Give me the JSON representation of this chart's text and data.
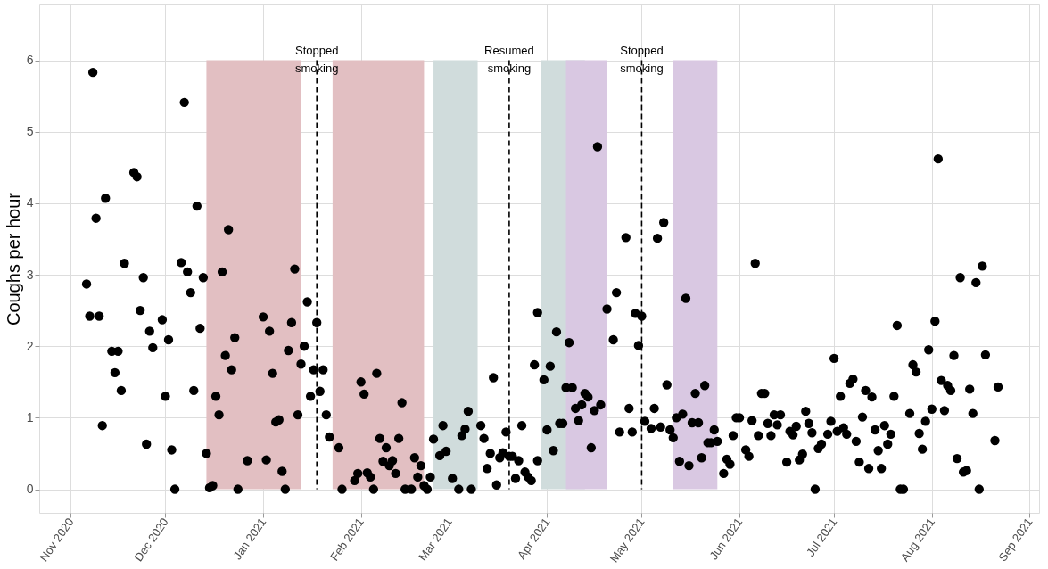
{
  "chart_data": {
    "type": "scatter",
    "ylabel": "Coughs per hour",
    "xlim": [
      "2020-10-22",
      "2021-09-04"
    ],
    "ylim": [
      -0.33,
      6.78
    ],
    "yticks": [
      0,
      1,
      2,
      3,
      4,
      5,
      6
    ],
    "xticks": [
      {
        "value": "2020-11-01",
        "label": "Nov 2020"
      },
      {
        "value": "2020-12-01",
        "label": "Dec 2020"
      },
      {
        "value": "2021-01-01",
        "label": "Jan 2021"
      },
      {
        "value": "2021-02-01",
        "label": "Feb 2021"
      },
      {
        "value": "2021-03-01",
        "label": "Mar 2021"
      },
      {
        "value": "2021-04-01",
        "label": "Apr 2021"
      },
      {
        "value": "2021-05-01",
        "label": "May 2021"
      },
      {
        "value": "2021-06-01",
        "label": "Jun 2021"
      },
      {
        "value": "2021-07-01",
        "label": "Jul 2021"
      },
      {
        "value": "2021-08-01",
        "label": "Aug 2021"
      },
      {
        "value": "2021-09-01",
        "label": "Sep 2021"
      }
    ],
    "grid": true,
    "marker": "circle",
    "bands": [
      {
        "axis": "x",
        "from": "2020-12-14",
        "to": "2021-01-13",
        "color": "#e2bfc2"
      },
      {
        "axis": "x",
        "from": "2021-01-23",
        "to": "2021-02-21",
        "color": "#e2bfc2"
      },
      {
        "axis": "x",
        "from": "2021-02-24",
        "to": "2021-03-10",
        "color": "#d0dcdc"
      },
      {
        "axis": "x",
        "from": "2021-03-30",
        "to": "2021-04-13",
        "color": "#d0dcdc"
      },
      {
        "axis": "x",
        "from": "2021-04-07",
        "to": "2021-04-20",
        "color": "#d9c8e2"
      },
      {
        "axis": "x",
        "from": "2021-05-11",
        "to": "2021-05-25",
        "color": "#d9c8e2"
      }
    ],
    "ref_lines": [
      {
        "axis": "x",
        "value": "2021-01-18",
        "label": "Stopped smoking",
        "color": "#000000",
        "line_style": "dashed"
      },
      {
        "axis": "x",
        "value": "2021-03-20",
        "label": "Resumed smoking",
        "color": "#000000",
        "line_style": "dashed"
      },
      {
        "axis": "x",
        "value": "2021-05-01",
        "label": "Stopped smoking",
        "color": "#000000",
        "line_style": "dashed"
      }
    ],
    "series": [
      {
        "color": "#000000",
        "x": [
          "2020-11-08",
          "2020-12-07",
          "2020-11-21",
          "2020-11-22",
          "2020-11-12",
          "2020-12-11",
          "2020-11-09",
          "2020-12-21",
          "2020-11-18",
          "2020-12-06",
          "2020-12-08",
          "2020-12-13",
          "2020-12-19",
          "2020-11-06",
          "2020-11-24",
          "2020-12-09",
          "2020-11-07",
          "2020-11-10",
          "2020-11-23",
          "2020-11-30",
          "2020-11-26",
          "2020-12-12",
          "2020-12-02",
          "2020-11-27",
          "2021-01-01",
          "2021-01-03",
          "2020-12-23",
          "2020-11-14",
          "2020-11-16",
          "2020-12-20",
          "2020-11-15",
          "2020-12-22",
          "2021-01-04",
          "2020-11-17",
          "2020-12-01",
          "2020-12-10",
          "2020-12-17",
          "2020-12-18",
          "2021-01-05",
          "2021-01-06",
          "2020-11-11",
          "2020-11-25",
          "2020-12-03",
          "2020-12-14",
          "2020-12-27",
          "2021-01-02",
          "2021-01-07",
          "2020-12-04",
          "2020-12-15",
          "2020-12-16",
          "2020-12-24",
          "2021-01-08",
          "2021-01-11",
          "2021-01-15",
          "2021-01-10",
          "2021-01-18",
          "2021-01-09",
          "2021-01-14",
          "2021-01-13",
          "2021-01-17",
          "2021-01-20",
          "2021-01-19",
          "2021-01-16",
          "2021-01-12",
          "2021-01-21",
          "2021-01-22",
          "2021-01-25",
          "2021-02-01",
          "2021-02-02",
          "2021-02-06",
          "2021-02-14",
          "2021-02-07",
          "2021-02-09",
          "2021-02-13",
          "2021-02-08",
          "2021-02-10",
          "2021-02-11",
          "2021-02-12",
          "2021-01-30",
          "2021-01-31",
          "2021-02-03",
          "2021-02-04",
          "2021-01-26",
          "2021-02-05",
          "2021-02-15",
          "2021-02-17",
          "2021-02-18",
          "2021-02-19",
          "2021-02-20",
          "2021-02-21",
          "2021-02-22",
          "2021-02-23",
          "2021-02-24",
          "2021-02-26",
          "2021-02-28",
          "2021-02-27",
          "2021-03-02",
          "2021-03-04",
          "2021-03-08",
          "2021-03-05",
          "2021-03-06",
          "2021-03-07",
          "2021-03-11",
          "2021-03-12",
          "2021-03-14",
          "2021-03-13",
          "2021-03-15",
          "2021-03-16",
          "2021-03-17",
          "2021-03-18",
          "2021-03-20",
          "2021-03-21",
          "2021-03-23",
          "2021-03-19",
          "2021-03-22",
          "2021-03-25",
          "2021-03-26",
          "2021-03-24",
          "2021-03-27",
          "2021-03-29",
          "2021-03-28",
          "2021-03-29",
          "2021-03-31",
          "2021-04-02",
          "2021-04-01",
          "2021-04-03",
          "2021-04-04",
          "2021-04-05",
          "2021-04-06",
          "2021-04-07",
          "2021-04-09",
          "2021-04-08",
          "2021-04-13",
          "2021-04-14",
          "2021-04-10",
          "2021-04-12",
          "2021-04-11",
          "2021-04-16",
          "2021-04-18",
          "2021-04-15",
          "2021-04-17",
          "2021-04-20",
          "2021-04-23",
          "2021-04-22",
          "2021-04-26",
          "2021-04-24",
          "2021-04-28",
          "2021-04-27",
          "2021-04-29",
          "2021-05-01",
          "2021-04-30",
          "2021-05-02",
          "2021-05-04",
          "2021-05-05",
          "2021-05-06",
          "2021-05-08",
          "2021-05-07",
          "2021-05-10",
          "2021-05-11",
          "2021-05-09",
          "2021-05-12",
          "2021-05-14",
          "2021-05-15",
          "2021-05-13",
          "2021-05-16",
          "2021-05-17",
          "2021-05-19",
          "2021-05-18",
          "2021-05-21",
          "2021-05-20",
          "2021-05-22",
          "2021-05-23",
          "2021-05-24",
          "2021-05-25",
          "2021-05-27",
          "2021-05-28",
          "2021-05-29",
          "2021-05-30",
          "2021-06-01",
          "2021-05-31",
          "2021-06-03",
          "2021-06-04",
          "2021-06-05",
          "2021-06-06",
          "2021-06-07",
          "2021-06-08",
          "2021-06-09",
          "2021-06-10",
          "2021-06-11",
          "2021-06-12",
          "2021-06-14",
          "2021-06-13",
          "2021-06-16",
          "2021-06-17",
          "2021-06-18",
          "2021-06-19",
          "2021-06-20",
          "2021-06-21",
          "2021-06-22",
          "2021-06-23",
          "2021-06-24",
          "2021-06-25",
          "2021-06-26",
          "2021-06-27",
          "2021-06-29",
          "2021-06-30",
          "2021-07-01",
          "2021-07-02",
          "2021-07-04",
          "2021-07-05",
          "2021-07-03",
          "2021-07-06",
          "2021-07-07",
          "2021-07-08",
          "2021-07-09",
          "2021-07-12",
          "2021-07-16",
          "2021-07-10",
          "2021-07-11",
          "2021-07-13",
          "2021-07-14",
          "2021-07-17",
          "2021-07-19",
          "2021-07-18",
          "2021-07-15",
          "2021-07-20",
          "2021-07-21",
          "2021-07-22",
          "2021-07-23",
          "2021-07-25",
          "2021-07-26",
          "2021-07-27",
          "2021-07-28",
          "2021-07-29",
          "2021-07-30",
          "2021-07-31",
          "2021-08-01",
          "2021-08-02",
          "2021-08-03",
          "2021-08-04",
          "2021-08-06",
          "2021-08-07",
          "2021-08-05",
          "2021-08-08",
          "2021-08-09",
          "2021-08-10",
          "2021-08-11",
          "2021-08-12",
          "2021-08-13",
          "2021-08-14",
          "2021-08-15",
          "2021-08-16",
          "2021-08-17",
          "2021-08-18",
          "2021-08-21",
          "2021-08-22"
        ],
        "values": [
          5.83,
          5.41,
          4.43,
          4.37,
          4.07,
          3.96,
          3.79,
          3.63,
          3.16,
          3.17,
          3.04,
          2.96,
          3.04,
          2.87,
          2.96,
          2.75,
          2.42,
          2.42,
          2.5,
          2.37,
          2.21,
          2.25,
          2.09,
          1.98,
          2.41,
          2.21,
          2.12,
          1.93,
          1.93,
          1.87,
          1.63,
          1.67,
          1.62,
          1.38,
          1.3,
          1.38,
          1.3,
          1.04,
          0.94,
          0.97,
          0.89,
          0.63,
          0.55,
          0.5,
          0.4,
          0.41,
          0.25,
          0,
          0.02,
          0.05,
          0,
          0,
          3.08,
          2.62,
          2.33,
          2.33,
          1.94,
          2.0,
          1.75,
          1.67,
          1.67,
          1.37,
          1.3,
          1.04,
          1.04,
          0.73,
          0.58,
          1.5,
          1.33,
          1.62,
          1.21,
          0.71,
          0.58,
          0.71,
          0.39,
          0.33,
          0.4,
          0.22,
          0.12,
          0.22,
          0.23,
          0.17,
          0,
          0,
          0,
          0,
          0.44,
          0.17,
          0.33,
          0.05,
          0,
          0.17,
          0.7,
          0.47,
          0.53,
          0.89,
          0.15,
          0,
          0,
          0.75,
          0.84,
          1.09,
          0.89,
          0.71,
          0.5,
          0.29,
          1.56,
          0.06,
          0.44,
          0.51,
          0.46,
          0.46,
          0.4,
          0.8,
          0.15,
          0.24,
          0.17,
          0.89,
          0.12,
          0.4,
          1.74,
          2.47,
          1.53,
          1.72,
          0.83,
          0.54,
          2.2,
          0.92,
          0.92,
          1.42,
          1.42,
          2.05,
          1.34,
          1.29,
          1.13,
          1.18,
          0.96,
          1.1,
          1.18,
          0.58,
          4.79,
          2.52,
          2.75,
          2.09,
          3.52,
          0.8,
          0.8,
          1.13,
          2.46,
          2.42,
          2.01,
          0.95,
          0.85,
          1.13,
          3.51,
          3.73,
          0.87,
          0.83,
          0.72,
          1.46,
          1.0,
          1.05,
          2.67,
          0.39,
          0.33,
          0.93,
          0.93,
          1.34,
          1.45,
          0.44,
          0.65,
          0.65,
          0.83,
          0.67,
          0.22,
          0.42,
          0.35,
          0.75,
          1.0,
          1.0,
          0.55,
          0.46,
          0.96,
          3.16,
          0.75,
          1.34,
          1.34,
          0.92,
          0.75,
          1.04,
          1.04,
          0.9,
          0.38,
          0.81,
          0.76,
          0.88,
          0.41,
          0.49,
          1.09,
          0.92,
          0.79,
          0,
          0.57,
          0.63,
          0.77,
          0.95,
          1.83,
          0.81,
          0.86,
          0.77,
          1.3,
          1.48,
          1.54,
          0.67,
          0.38,
          0.29,
          0.29,
          1.01,
          1.38,
          1.29,
          0.83,
          0.89,
          0.77,
          0.63,
          0.54,
          1.3,
          2.29,
          0,
          0,
          1.06,
          1.74,
          1.64,
          0.78,
          0.56,
          0.95,
          1.95,
          1.12,
          2.35,
          4.62,
          1.52,
          1.45,
          1.38,
          1.1,
          1.87,
          0.43,
          2.96,
          0.24,
          0.26,
          1.4,
          1.06,
          2.89,
          0,
          3.12,
          1.88,
          0.68,
          1.43
        ]
      }
    ]
  }
}
